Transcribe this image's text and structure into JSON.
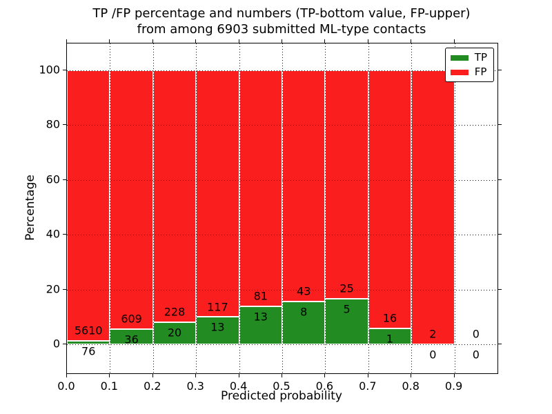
{
  "chart_data": {
    "type": "bar",
    "variant": "stacked-percentage",
    "title_line1": "TP /FP percentage and numbers (TP-bottom value, FP-upper)",
    "title_line2": "from among 6903 submitted ML-type contacts",
    "xlabel": "Predicted probability",
    "ylabel": "Percentage",
    "x_tick_labels": [
      "0.0",
      "0.1",
      "0.2",
      "0.3",
      "0.4",
      "0.5",
      "0.6",
      "0.7",
      "0.8",
      "0.9"
    ],
    "y_tick_values": [
      0,
      20,
      40,
      60,
      80,
      100
    ],
    "y_tick_labels": [
      "0",
      "20",
      "40",
      "60",
      "80",
      "100"
    ],
    "xlim": [
      0.0,
      1.0
    ],
    "ylim": [
      -10.6,
      110.2
    ],
    "grid": "dotted",
    "legend_position": "upper-right",
    "colors": {
      "tp": "#228b22",
      "fp": "#fa1e1e",
      "bar_edge": "#ffffff"
    },
    "legend": [
      {
        "label": "TP",
        "series": "tp"
      },
      {
        "label": "FP",
        "series": "fp"
      }
    ],
    "categories": [
      "0.0-0.1",
      "0.1-0.2",
      "0.2-0.3",
      "0.3-0.4",
      "0.4-0.5",
      "0.5-0.6",
      "0.6-0.7",
      "0.7-0.8",
      "0.8-0.9",
      "0.9-1.0"
    ],
    "series": [
      {
        "name": "TP",
        "counts": [
          76,
          36,
          20,
          13,
          13,
          8,
          5,
          1,
          0,
          0
        ]
      },
      {
        "name": "FP",
        "counts": [
          5610,
          609,
          228,
          117,
          81,
          43,
          25,
          16,
          2,
          0
        ]
      }
    ],
    "tp_percent": [
      1.34,
      5.58,
      8.06,
      10.0,
      13.83,
      15.69,
      16.67,
      5.88,
      0.0,
      0.0
    ],
    "total_submitted": 6903
  }
}
